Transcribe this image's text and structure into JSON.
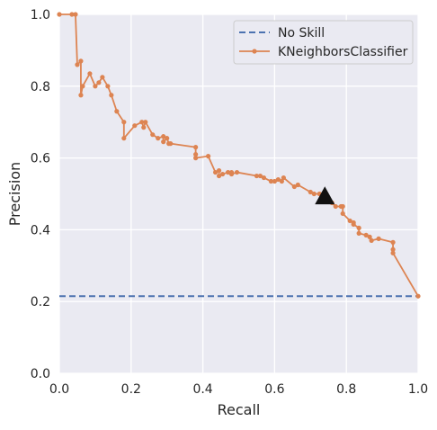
{
  "chart_data": {
    "type": "line",
    "xlabel": "Recall",
    "ylabel": "Precision",
    "xlim": [
      0.0,
      1.0
    ],
    "ylim": [
      0.0,
      1.0
    ],
    "xticks": [
      "0.0",
      "0.2",
      "0.4",
      "0.6",
      "0.8",
      "1.0"
    ],
    "yticks": [
      "0.0",
      "0.2",
      "0.4",
      "0.6",
      "0.8",
      "1.0"
    ],
    "grid": true,
    "legend_position": "top-right",
    "colors": {
      "background": "#EAEAF2",
      "grid": "#FFFFFF",
      "no_skill": "#4C72B0",
      "knn": "#DD8452",
      "marker": "#111111"
    },
    "series": [
      {
        "name": "No Skill",
        "style": "dashed",
        "x": [
          0.0,
          1.0
        ],
        "y": [
          0.215,
          0.215
        ]
      },
      {
        "name": "KNeighborsClassifier",
        "style": "line-with-dots",
        "x": [
          0.0,
          0.035,
          0.045,
          0.05,
          0.06,
          0.06,
          0.065,
          0.085,
          0.1,
          0.11,
          0.12,
          0.135,
          0.145,
          0.16,
          0.18,
          0.18,
          0.21,
          0.23,
          0.235,
          0.24,
          0.26,
          0.275,
          0.29,
          0.29,
          0.3,
          0.305,
          0.31,
          0.38,
          0.38,
          0.38,
          0.415,
          0.435,
          0.445,
          0.445,
          0.455,
          0.47,
          0.48,
          0.48,
          0.495,
          0.55,
          0.56,
          0.57,
          0.59,
          0.6,
          0.61,
          0.62,
          0.625,
          0.655,
          0.665,
          0.7,
          0.71,
          0.725,
          0.735,
          0.745,
          0.76,
          0.77,
          0.785,
          0.79,
          0.79,
          0.81,
          0.82,
          0.82,
          0.835,
          0.835,
          0.855,
          0.865,
          0.87,
          0.89,
          0.93,
          0.93,
          0.93,
          1.0
        ],
        "y": [
          1.0,
          1.0,
          1.0,
          0.86,
          0.87,
          0.775,
          0.8,
          0.835,
          0.8,
          0.81,
          0.825,
          0.8,
          0.775,
          0.73,
          0.7,
          0.655,
          0.69,
          0.7,
          0.685,
          0.7,
          0.665,
          0.655,
          0.66,
          0.645,
          0.655,
          0.64,
          0.64,
          0.63,
          0.61,
          0.6,
          0.605,
          0.56,
          0.565,
          0.55,
          0.555,
          0.56,
          0.56,
          0.555,
          0.56,
          0.55,
          0.55,
          0.545,
          0.535,
          0.535,
          0.54,
          0.535,
          0.545,
          0.52,
          0.525,
          0.505,
          0.5,
          0.5,
          0.495,
          0.49,
          0.475,
          0.465,
          0.465,
          0.465,
          0.445,
          0.425,
          0.42,
          0.415,
          0.405,
          0.39,
          0.385,
          0.38,
          0.37,
          0.375,
          0.365,
          0.345,
          0.335,
          0.215
        ]
      }
    ],
    "best_threshold": {
      "x": 0.74,
      "y": 0.493,
      "marker": "triangle"
    }
  }
}
